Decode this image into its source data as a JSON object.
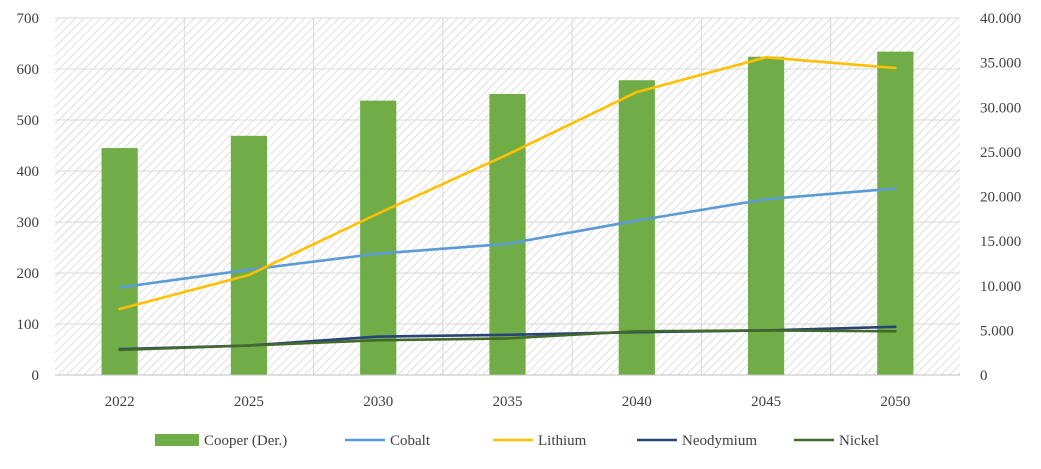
{
  "chart_data": {
    "type": "bar",
    "categories": [
      "2022",
      "2025",
      "2030",
      "2035",
      "2040",
      "2045",
      "2050"
    ],
    "bar_series": [
      {
        "name": "Cooper (Der.)",
        "axis": "left",
        "color": "#70ad47",
        "values": [
          445,
          469,
          538,
          551,
          578,
          624,
          634
        ]
      }
    ],
    "line_series": [
      {
        "name": "Cobalt",
        "axis": "right",
        "color": "#5b9bd5",
        "values": [
          9800,
          11800,
          13600,
          14700,
          17300,
          19700,
          20900
        ]
      },
      {
        "name": "Lithium",
        "axis": "right",
        "color": "#ffc000",
        "values": [
          7400,
          11200,
          18100,
          24700,
          31700,
          35600,
          34400
        ]
      },
      {
        "name": "Neodymium",
        "axis": "right",
        "color": "#264478",
        "values": [
          2900,
          3300,
          4300,
          4500,
          4800,
          5000,
          5400
        ]
      },
      {
        "name": "Nickel",
        "axis": "right",
        "color": "#43682b",
        "values": [
          2800,
          3300,
          3900,
          4100,
          4900,
          5000,
          4900
        ]
      }
    ],
    "left_axis": {
      "ylim": [
        0,
        700
      ],
      "ticks": [
        0,
        100,
        200,
        300,
        400,
        500,
        600,
        700
      ],
      "tick_labels": [
        "0",
        "100",
        "200",
        "300",
        "400",
        "500",
        "600",
        "700"
      ]
    },
    "right_axis": {
      "ylim": [
        0,
        40000
      ],
      "ticks": [
        0,
        5000,
        10000,
        15000,
        20000,
        25000,
        30000,
        35000,
        40000
      ],
      "tick_labels": [
        "0",
        "5.000",
        "10.000",
        "15.000",
        "20.000",
        "25.000",
        "30.000",
        "35.000",
        "40.000"
      ]
    },
    "title": "",
    "xlabel": "",
    "ylabel": "",
    "grid": true,
    "legend": {
      "position": "bottom",
      "entries": [
        "Cooper (Der.)",
        "Cobalt",
        "Lithium",
        "Neodymium",
        "Nickel"
      ]
    }
  }
}
